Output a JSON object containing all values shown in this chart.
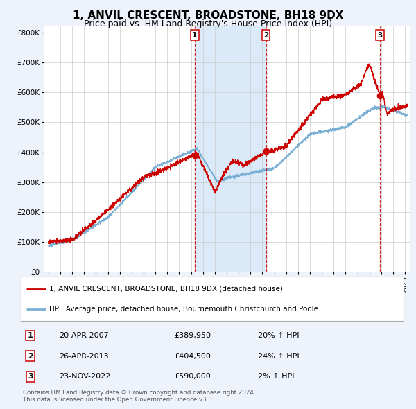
{
  "title": "1, ANVIL CRESCENT, BROADSTONE, BH18 9DX",
  "subtitle": "Price paid vs. HM Land Registry's House Price Index (HPI)",
  "legend_red": "1, ANVIL CRESCENT, BROADSTONE, BH18 9DX (detached house)",
  "legend_blue": "HPI: Average price, detached house, Bournemouth Christchurch and Poole",
  "footer1": "Contains HM Land Registry data © Crown copyright and database right 2024.",
  "footer2": "This data is licensed under the Open Government Licence v3.0.",
  "transactions": [
    {
      "num": 1,
      "date": "20-APR-2007",
      "price": 389950,
      "price_str": "£389,950",
      "pct": "20%",
      "dir": "↑",
      "x": 2007.3
    },
    {
      "num": 2,
      "date": "26-APR-2013",
      "price": 404500,
      "price_str": "£404,500",
      "pct": "24%",
      "dir": "↑",
      "x": 2013.3
    },
    {
      "num": 3,
      "date": "23-NOV-2022",
      "price": 590000,
      "price_str": "£590,000",
      "pct": "2%",
      "dir": "↑",
      "x": 2022.9
    }
  ],
  "background_color": "#eef2fa",
  "plot_background": "#ffffff",
  "shaded_region": [
    2007.3,
    2013.3
  ],
  "shaded_color": "#daeaf8",
  "ylim": [
    0,
    820000
  ],
  "xlim": [
    1994.6,
    2025.4
  ],
  "grid_color": "#cccccc",
  "red_color": "#cc0000",
  "blue_color": "#7aafd4",
  "title_fontsize": 11,
  "subtitle_fontsize": 9
}
